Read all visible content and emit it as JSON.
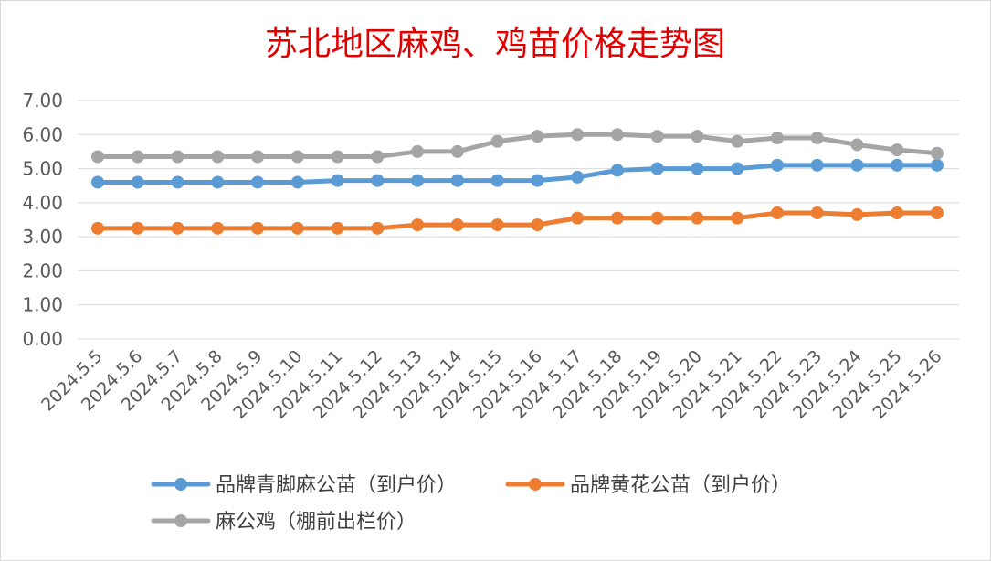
{
  "chart_data": {
    "type": "line",
    "title": "苏北地区麻鸡、鸡苗价格走势图",
    "categories": [
      "2024.5.5",
      "2024.5.6",
      "2024.5.7",
      "2024.5.8",
      "2024.5.9",
      "2024.5.10",
      "2024.5.11",
      "2024.5.12",
      "2024.5.13",
      "2024.5.14",
      "2024.5.15",
      "2024.5.16",
      "2024.5.17",
      "2024.5.18",
      "2024.5.19",
      "2024.5.20",
      "2024.5.21",
      "2024.5.22",
      "2024.5.23",
      "2024.5.24",
      "2024.5.25",
      "2024.5.26"
    ],
    "y_ticks": [
      "0.00",
      "1.00",
      "2.00",
      "3.00",
      "4.00",
      "5.00",
      "6.00",
      "7.00"
    ],
    "ylim": [
      0,
      7
    ],
    "grid": true,
    "legend_position": "bottom",
    "series": [
      {
        "name": "品牌青脚麻公苗（到户价）",
        "color": "#5b9bd5",
        "values": [
          4.6,
          4.6,
          4.6,
          4.6,
          4.6,
          4.6,
          4.65,
          4.65,
          4.65,
          4.65,
          4.65,
          4.65,
          4.75,
          4.95,
          5.0,
          5.0,
          5.0,
          5.1,
          5.1,
          5.1,
          5.1,
          5.1
        ]
      },
      {
        "name": "品牌黄花公苗（到户价）",
        "color": "#ed7d31",
        "values": [
          3.25,
          3.25,
          3.25,
          3.25,
          3.25,
          3.25,
          3.25,
          3.25,
          3.35,
          3.35,
          3.35,
          3.35,
          3.55,
          3.55,
          3.55,
          3.55,
          3.55,
          3.7,
          3.7,
          3.65,
          3.7,
          3.7
        ]
      },
      {
        "name": "麻公鸡（棚前出栏价）",
        "color": "#a5a5a5",
        "values": [
          5.35,
          5.35,
          5.35,
          5.35,
          5.35,
          5.35,
          5.35,
          5.35,
          5.5,
          5.5,
          5.8,
          5.95,
          6.0,
          6.0,
          5.95,
          5.95,
          5.8,
          5.9,
          5.9,
          5.7,
          5.55,
          5.45
        ]
      }
    ]
  }
}
